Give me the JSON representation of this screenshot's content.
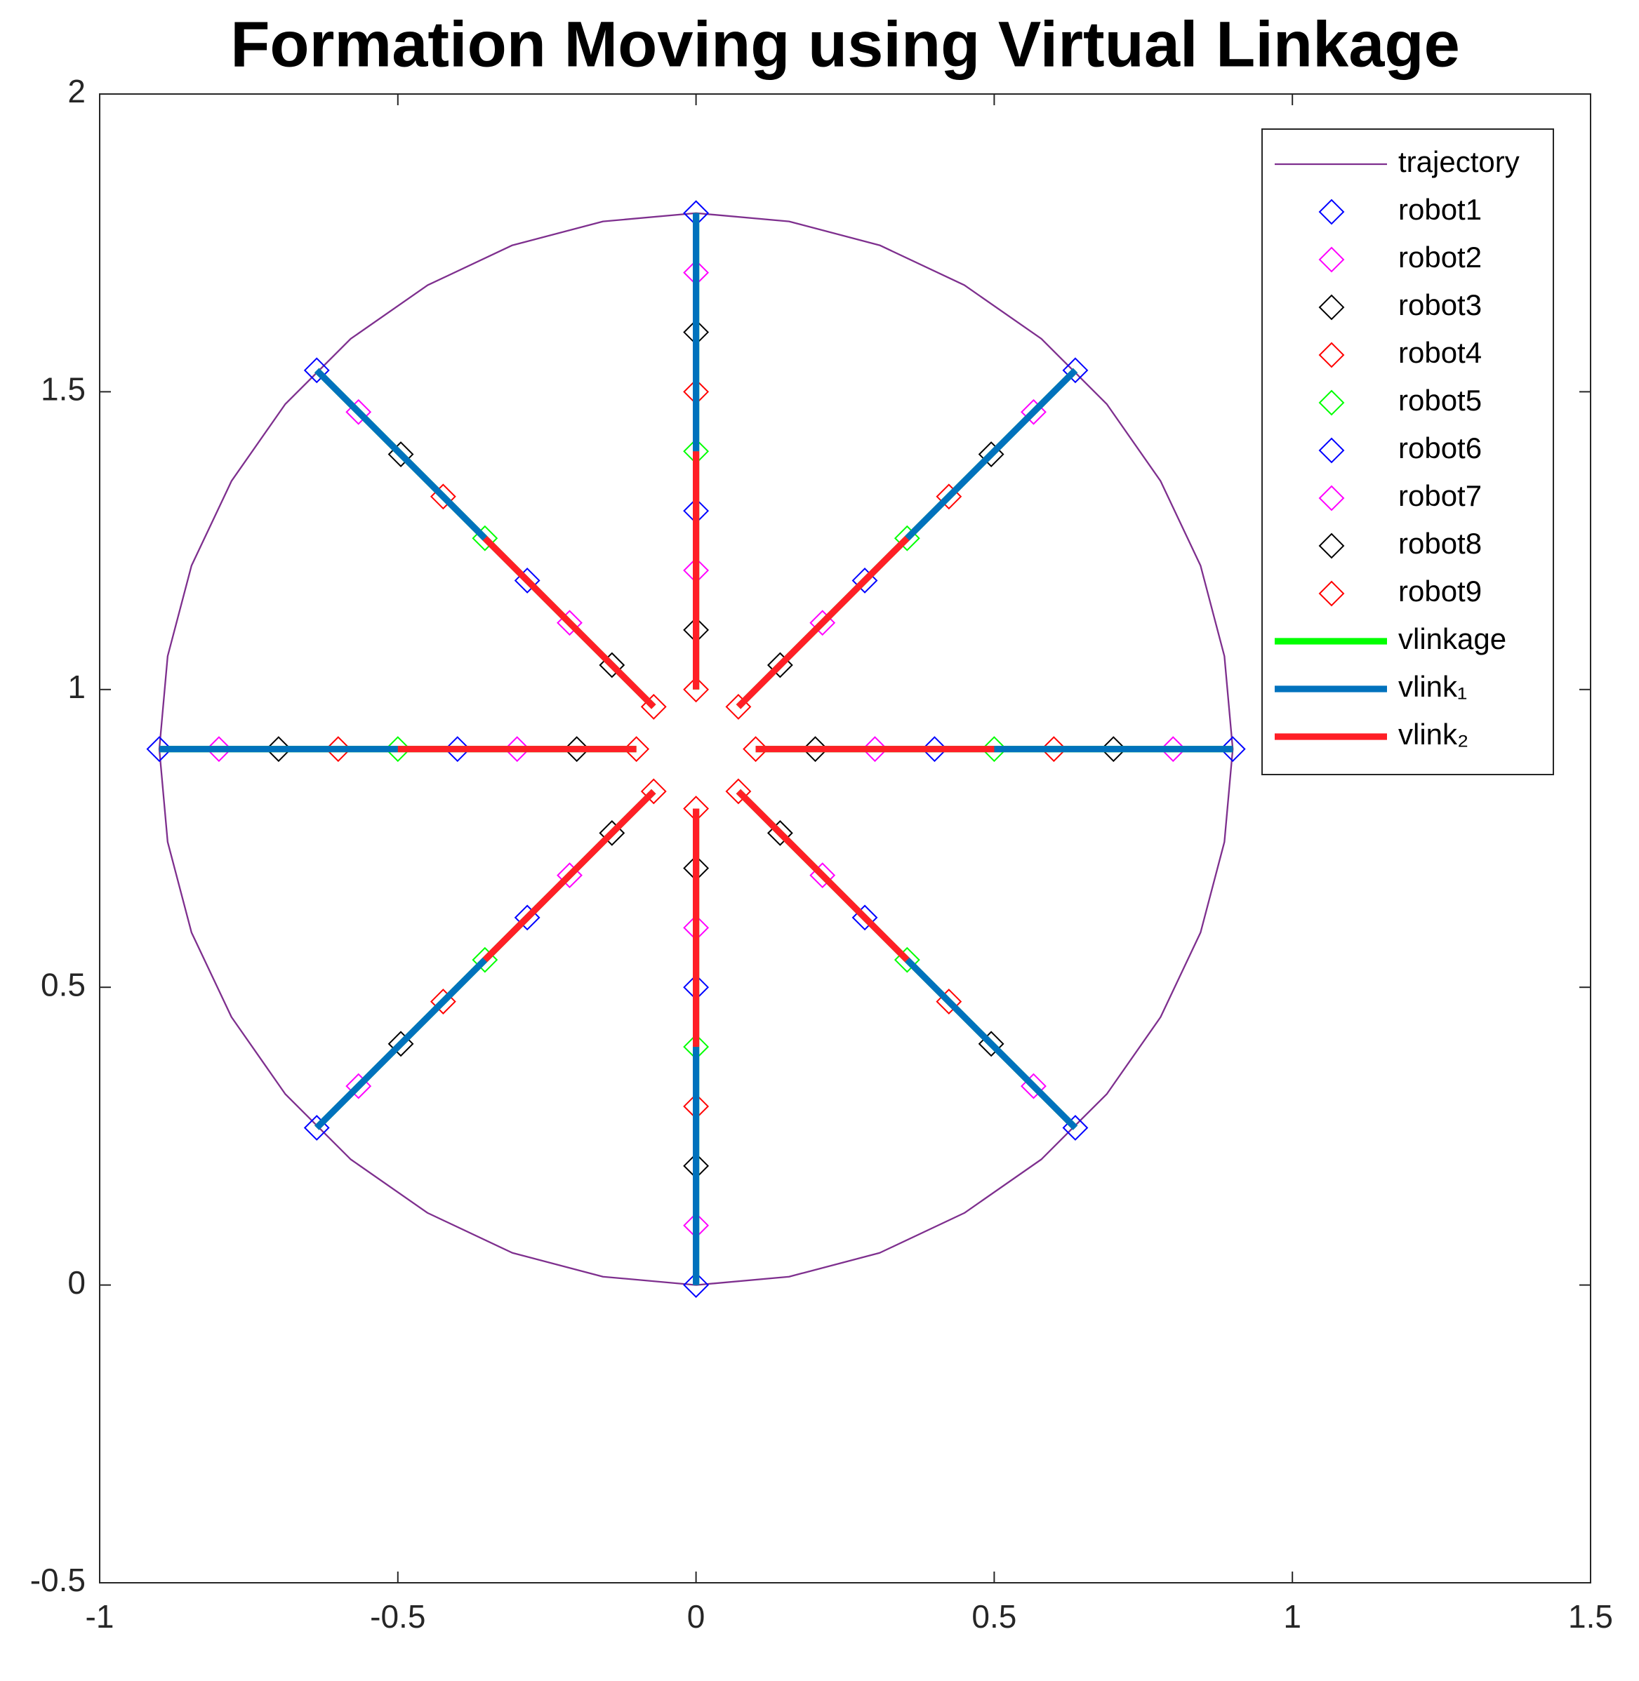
{
  "chart_data": {
    "type": "line",
    "title": "Formation Moving using Virtual Linkage",
    "xlim": [
      -1,
      1.5
    ],
    "ylim": [
      -0.5,
      2
    ],
    "xticks": [
      -1,
      -0.5,
      0,
      0.5,
      1,
      1.5
    ],
    "yticks": [
      -0.5,
      0,
      0.5,
      1,
      1.5,
      2
    ],
    "legend": "upper right",
    "series": [
      {
        "name": "trajectory",
        "color": "#7E2F8E",
        "mode": "line",
        "linewidth": 1,
        "x": [
          0,
          0.156,
          0.308,
          0.45,
          0.579,
          0.689,
          0.779,
          0.846,
          0.886,
          0.9,
          0.886,
          0.846,
          0.779,
          0.689,
          0.579,
          0.45,
          0.308,
          0.156,
          0,
          -0.156,
          -0.308,
          -0.45,
          -0.579,
          -0.689,
          -0.779,
          -0.846,
          -0.886,
          -0.9,
          -0.886,
          -0.846,
          -0.779,
          -0.689,
          -0.579,
          -0.45,
          -0.308,
          -0.156,
          0
        ],
        "y": [
          0,
          0.014,
          0.054,
          0.121,
          0.211,
          0.321,
          0.45,
          0.592,
          0.744,
          0.9,
          1.056,
          1.208,
          1.35,
          1.479,
          1.589,
          1.679,
          1.746,
          1.786,
          1.8,
          1.786,
          1.746,
          1.679,
          1.589,
          1.479,
          1.35,
          1.208,
          1.056,
          0.9,
          0.744,
          0.592,
          0.45,
          0.321,
          0.211,
          0.121,
          0.054,
          0.014,
          0
        ]
      },
      {
        "name": "robot1",
        "color": "#0000FF",
        "mode": "markers",
        "x": [
          0,
          0.636,
          0.9,
          0.636,
          0,
          -0.636,
          -0.9,
          -0.636
        ],
        "y": [
          0,
          0.264,
          0.9,
          1.536,
          1.8,
          1.536,
          0.9,
          0.264
        ]
      },
      {
        "name": "robot2",
        "color": "#FF00FF",
        "mode": "markers",
        "x": [
          0,
          0.566,
          0.8,
          0.566,
          0,
          -0.566,
          -0.8,
          -0.566
        ],
        "y": [
          0.1,
          0.334,
          0.9,
          1.466,
          1.7,
          1.466,
          0.9,
          0.334
        ]
      },
      {
        "name": "robot3",
        "color": "#000000",
        "mode": "markers",
        "x": [
          0,
          0.495,
          0.7,
          0.495,
          0,
          -0.495,
          -0.7,
          -0.495
        ],
        "y": [
          0.2,
          0.405,
          0.9,
          1.395,
          1.6,
          1.395,
          0.9,
          0.405
        ]
      },
      {
        "name": "robot4",
        "color": "#FF0000",
        "mode": "markers",
        "x": [
          0,
          0.424,
          0.6,
          0.424,
          0,
          -0.424,
          -0.6,
          -0.424
        ],
        "y": [
          0.3,
          0.476,
          0.9,
          1.324,
          1.5,
          1.324,
          0.9,
          0.476
        ]
      },
      {
        "name": "robot5",
        "color": "#00FF00",
        "mode": "markers",
        "x": [
          0,
          0.354,
          0.5,
          0.354,
          0,
          -0.354,
          -0.5,
          -0.354
        ],
        "y": [
          0.4,
          0.546,
          0.9,
          1.254,
          1.4,
          1.254,
          0.9,
          0.546
        ]
      },
      {
        "name": "robot6",
        "color": "#0000FF",
        "mode": "markers",
        "x": [
          0,
          0.283,
          0.4,
          0.283,
          0,
          -0.283,
          -0.4,
          -0.283
        ],
        "y": [
          0.5,
          0.617,
          0.9,
          1.183,
          1.3,
          1.183,
          0.9,
          0.617
        ]
      },
      {
        "name": "robot7",
        "color": "#FF00FF",
        "mode": "markers",
        "x": [
          0,
          0.212,
          0.3,
          0.212,
          0,
          -0.212,
          -0.3,
          -0.212
        ],
        "y": [
          0.6,
          0.688,
          0.9,
          1.112,
          1.2,
          1.112,
          0.9,
          0.688
        ]
      },
      {
        "name": "robot8",
        "color": "#000000",
        "mode": "markers",
        "x": [
          0,
          0.141,
          0.2,
          0.141,
          0,
          -0.141,
          -0.2,
          -0.141
        ],
        "y": [
          0.7,
          0.759,
          0.9,
          1.041,
          1.1,
          1.041,
          0.9,
          0.759
        ]
      },
      {
        "name": "robot9",
        "color": "#FF0000",
        "mode": "markers",
        "x": [
          0,
          0.071,
          0.1,
          0.071,
          0,
          -0.071,
          -0.1,
          -0.071
        ],
        "y": [
          0.8,
          0.829,
          0.9,
          0.971,
          1.0,
          0.971,
          0.9,
          0.829
        ]
      },
      {
        "name": "vlinkage",
        "color": "#00FF00",
        "mode": "line",
        "linewidth": 4,
        "x": [
          0,
          0,
          null,
          0.636,
          0.071,
          null,
          0.9,
          0.1,
          null,
          0.636,
          0.071,
          null,
          0,
          0,
          null,
          -0.636,
          -0.071,
          null,
          -0.9,
          -0.1,
          null,
          -0.636,
          -0.071
        ],
        "y": [
          0,
          0.8,
          null,
          0.264,
          0.829,
          null,
          0.9,
          0.9,
          null,
          1.536,
          0.971,
          null,
          1.8,
          1.0,
          null,
          1.536,
          0.971,
          null,
          0.9,
          0.9,
          null,
          0.264,
          0.829
        ]
      },
      {
        "name": "vlink₁",
        "color": "#0072BD",
        "mode": "line",
        "linewidth": 4,
        "x": [
          0,
          0,
          null,
          0.636,
          0.354,
          null,
          0.9,
          0.5,
          null,
          0.636,
          0.354,
          null,
          0,
          0,
          null,
          -0.636,
          -0.354,
          null,
          -0.9,
          -0.5,
          null,
          -0.636,
          -0.354
        ],
        "y": [
          0,
          0.4,
          null,
          0.264,
          0.546,
          null,
          0.9,
          0.9,
          null,
          1.536,
          1.254,
          null,
          1.8,
          1.4,
          null,
          1.536,
          1.254,
          null,
          0.9,
          0.9,
          null,
          0.264,
          0.546
        ]
      },
      {
        "name": "vlink₂",
        "color": "#FF1F26",
        "mode": "line",
        "linewidth": 4,
        "x": [
          0,
          0,
          null,
          0.354,
          0.071,
          null,
          0.5,
          0.1,
          null,
          0.354,
          0.071,
          null,
          0,
          0,
          null,
          -0.354,
          -0.071,
          null,
          -0.5,
          -0.1,
          null,
          -0.354,
          -0.071
        ],
        "y": [
          0.4,
          0.8,
          null,
          0.546,
          0.829,
          null,
          0.9,
          0.9,
          null,
          1.254,
          0.971,
          null,
          1.4,
          1.0,
          null,
          1.254,
          0.971,
          null,
          0.9,
          0.9,
          null,
          0.546,
          0.829
        ]
      }
    ]
  }
}
